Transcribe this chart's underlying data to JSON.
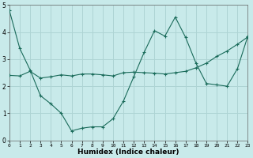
{
  "xlabel": "Humidex (Indice chaleur)",
  "xlim": [
    0,
    23
  ],
  "ylim": [
    0,
    5
  ],
  "xticks": [
    0,
    1,
    2,
    3,
    4,
    5,
    6,
    7,
    8,
    9,
    10,
    11,
    12,
    13,
    14,
    15,
    16,
    17,
    18,
    19,
    20,
    21,
    22,
    23
  ],
  "yticks": [
    0,
    1,
    2,
    3,
    4,
    5
  ],
  "background_color": "#c8eaea",
  "grid_color": "#aed4d4",
  "line_color": "#1a6b5a",
  "line1_x": [
    0,
    1,
    2,
    3,
    4,
    5,
    6,
    7,
    8,
    9,
    10,
    11,
    12,
    13,
    14,
    15,
    16,
    17,
    18,
    19,
    20,
    21,
    22,
    23
  ],
  "line1_y": [
    4.8,
    3.4,
    2.6,
    1.65,
    1.35,
    1.0,
    0.35,
    0.45,
    0.5,
    0.5,
    0.8,
    1.45,
    2.35,
    3.25,
    4.05,
    3.85,
    4.55,
    3.8,
    2.85,
    2.1,
    2.05,
    2.0,
    2.65,
    3.85
  ],
  "line2_x": [
    0,
    1,
    2,
    3,
    4,
    5,
    6,
    7,
    8,
    9,
    10,
    11,
    12,
    13,
    14,
    15,
    16,
    17,
    18,
    19,
    20,
    21,
    22,
    23
  ],
  "line2_y": [
    2.4,
    2.38,
    2.55,
    2.3,
    2.35,
    2.42,
    2.38,
    2.45,
    2.45,
    2.42,
    2.38,
    2.5,
    2.52,
    2.5,
    2.48,
    2.45,
    2.5,
    2.55,
    2.68,
    2.85,
    3.1,
    3.3,
    3.55,
    3.82
  ],
  "figsize": [
    3.2,
    2.0
  ],
  "dpi": 100
}
